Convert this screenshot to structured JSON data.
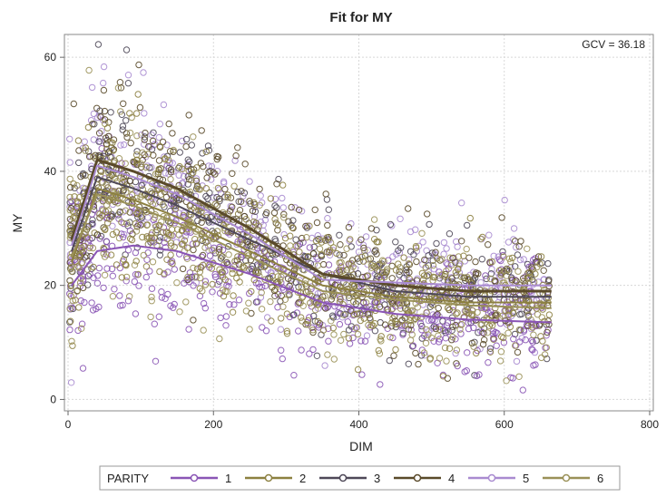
{
  "chart_data": {
    "type": "scatter",
    "title": "Fit for MY",
    "xlabel": "DIM",
    "ylabel": "MY",
    "xlim": [
      -5,
      805
    ],
    "ylim": [
      -2,
      64
    ],
    "xticks": [
      0,
      200,
      400,
      600,
      800
    ],
    "yticks": [
      0,
      20,
      40,
      60
    ],
    "grid": true,
    "annotation": "GCV = 36.18",
    "legend": {
      "title": "PARITY",
      "placement": "bottom"
    },
    "series": [
      {
        "name": "1",
        "color": "#8a55b5",
        "fit": {
          "x": [
            5,
            40,
            90,
            150,
            250,
            350,
            450,
            550,
            665
          ],
          "y": [
            20,
            26,
            27,
            26,
            22,
            17,
            15,
            14,
            13.5
          ]
        }
      },
      {
        "name": "2",
        "color": "#8c8040",
        "fit": {
          "x": [
            5,
            40,
            90,
            150,
            250,
            350,
            450,
            550,
            665
          ],
          "y": [
            24,
            37,
            35,
            32,
            26,
            20,
            18,
            17,
            17
          ]
        }
      },
      {
        "name": "3",
        "color": "#4e4858",
        "fit": {
          "x": [
            5,
            40,
            90,
            150,
            250,
            350,
            450,
            550,
            665
          ],
          "y": [
            26,
            39,
            37,
            34,
            28,
            22,
            19,
            18,
            18
          ]
        }
      },
      {
        "name": "4",
        "color": "#5a4a2a",
        "fit": {
          "x": [
            5,
            40,
            90,
            150,
            250,
            350,
            450,
            550,
            665
          ],
          "y": [
            28,
            42,
            40,
            37,
            30,
            22,
            20,
            19,
            19
          ]
        }
      },
      {
        "name": "5",
        "color": "#a98bd0",
        "fit": {
          "x": [
            5,
            40,
            90,
            150,
            250,
            350,
            450,
            550,
            665
          ],
          "y": [
            27,
            41,
            39,
            36,
            29,
            21,
            20.5,
            20,
            20
          ]
        }
      },
      {
        "name": "6",
        "color": "#9a9158",
        "fit": {
          "x": [
            5,
            40,
            90,
            150,
            250,
            350,
            450,
            550,
            665
          ],
          "y": [
            25,
            36,
            34,
            31,
            25,
            19,
            17.5,
            16.5,
            16
          ]
        }
      }
    ]
  }
}
